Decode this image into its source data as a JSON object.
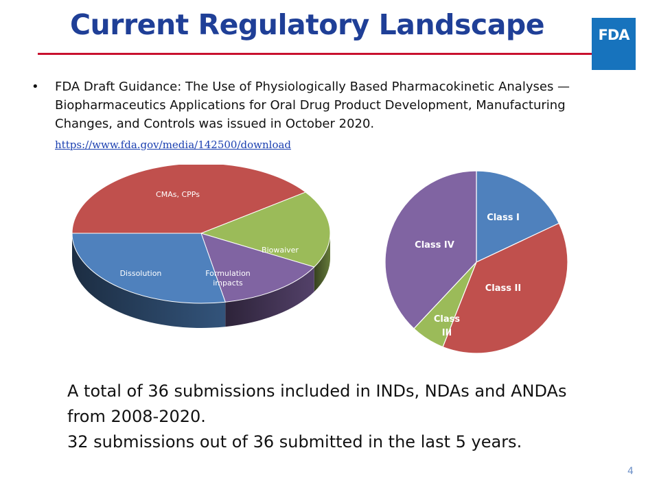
{
  "slide": {
    "title": "Current Regulatory Landscape",
    "logo_text": "FDA",
    "bullet": "FDA Draft Guidance: The Use of Physiologically Based Pharmacokinetic Analyses — Biopharmaceutics Applications for Oral Drug Product Development, Manufacturing Changes, and Controls was issued in October 2020.",
    "link": "https://www.fda.gov/media/142500/download",
    "summary_line1": "A total of 36 submissions included in INDs, NDAs and ANDAs",
    "summary_line2": "from 2008-2020.",
    "summary_line3": "32 submissions out of 36 submitted in the last 5 years.",
    "page_number": "4"
  },
  "colors": {
    "title": "#1f3f97",
    "rule": "#c8102e",
    "logo": "#1773bd"
  },
  "chart_data": [
    {
      "type": "pie",
      "style": "3d",
      "slices": [
        {
          "label": "CMAs, CPPs",
          "value": 40,
          "color": "#c0504d"
        },
        {
          "label": "Biowaiver",
          "value": 18,
          "color": "#9bbb59"
        },
        {
          "label": "Formulation impacts",
          "value": 14,
          "color": "#8064a2"
        },
        {
          "label": "Dissolution",
          "value": 28,
          "color": "#4f81bd"
        }
      ]
    },
    {
      "type": "pie",
      "slices": [
        {
          "label": "Class I",
          "value": 18,
          "color": "#4f81bd"
        },
        {
          "label": "Class II",
          "value": 38,
          "color": "#c0504d"
        },
        {
          "label": "Class III",
          "value": 6,
          "color": "#9bbb59"
        },
        {
          "label": "Class IV",
          "value": 38,
          "color": "#8064a2"
        }
      ]
    }
  ]
}
